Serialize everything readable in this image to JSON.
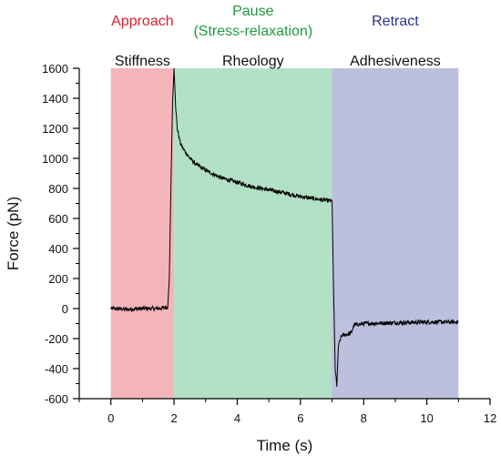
{
  "chart_data": {
    "type": "line",
    "xlabel": "Time (s)",
    "ylabel": "Force (pN)",
    "xlim": [
      -1,
      12
    ],
    "ylim": [
      -600,
      1600
    ],
    "x_ticks": [
      0,
      2,
      4,
      6,
      8,
      10,
      12
    ],
    "y_ticks": [
      -600,
      -400,
      -200,
      0,
      200,
      400,
      600,
      800,
      1000,
      1200,
      1400,
      1600
    ],
    "regions": [
      {
        "x0": 0,
        "x1": 2,
        "color": "#f4b5b9",
        "phase": "Approach",
        "phase_color": "#d8222d",
        "property": "Stiffness"
      },
      {
        "x0": 2,
        "x1": 7,
        "color": "#b2e1c6",
        "phase": "Pause\n(Stress-relaxation)",
        "phase_color": "#1f9a3c",
        "property": "Rheology"
      },
      {
        "x0": 7,
        "x1": 11,
        "color": "#bcc0dd",
        "phase": "Retract",
        "phase_color": "#27338a",
        "property": "Adhesiveness"
      }
    ],
    "series": [
      {
        "color": "#000000",
        "x": [
          0,
          0.5,
          1.0,
          1.5,
          1.8,
          1.85,
          1.9,
          1.95,
          2.0,
          2.05,
          2.1,
          2.2,
          2.3,
          2.5,
          2.7,
          3.0,
          3.5,
          4.0,
          4.5,
          5.0,
          5.5,
          6.0,
          6.5,
          7.0,
          7.05,
          7.1,
          7.15,
          7.2,
          7.3,
          7.4,
          7.6,
          7.7,
          8.0,
          9.0,
          10.0,
          11.0
        ],
        "y": [
          0,
          -5,
          0,
          0,
          10,
          200,
          800,
          1350,
          1600,
          1350,
          1200,
          1100,
          1060,
          1000,
          960,
          920,
          870,
          840,
          810,
          790,
          770,
          745,
          730,
          715,
          100,
          -400,
          -520,
          -250,
          -180,
          -175,
          -165,
          -110,
          -100,
          -95,
          -90,
          -90
        ]
      }
    ]
  }
}
